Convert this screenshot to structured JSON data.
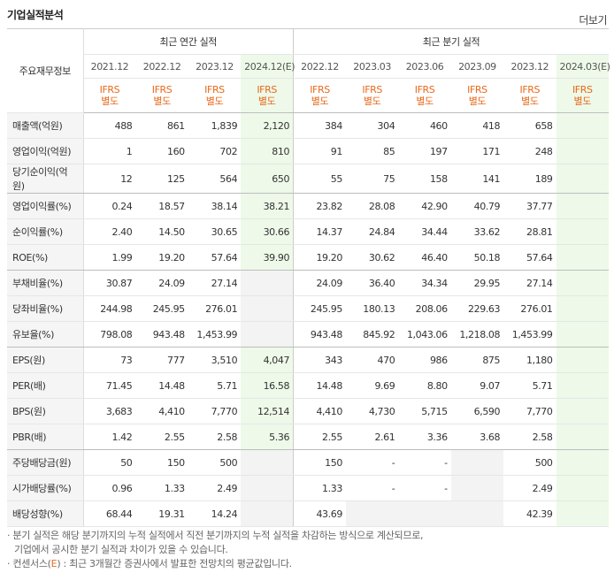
{
  "header": {
    "title": "기업실적분석",
    "more_label": "더보기"
  },
  "table": {
    "row_header_label": "주요재무정보",
    "group_annual": "최근 연간 실적",
    "group_quarter": "최근 분기 실적",
    "annual_periods": [
      "2021.12",
      "2022.12",
      "2023.12",
      "2024.12(E)"
    ],
    "quarter_periods": [
      "2022.12",
      "2023.03",
      "2023.06",
      "2023.09",
      "2023.12",
      "2024.03(E)"
    ],
    "standard_line1": "IFRS",
    "standard_line2": "별도",
    "rows": [
      {
        "label": "매출액(억원)",
        "annual": [
          "488",
          "861",
          "1,839",
          "2,120"
        ],
        "quarter": [
          "384",
          "304",
          "460",
          "418",
          "658",
          ""
        ]
      },
      {
        "label": "영업이익(억원)",
        "annual": [
          "1",
          "160",
          "702",
          "810"
        ],
        "quarter": [
          "91",
          "85",
          "197",
          "171",
          "248",
          ""
        ]
      },
      {
        "label": "당기순이익(억원)",
        "annual": [
          "12",
          "125",
          "564",
          "650"
        ],
        "quarter": [
          "55",
          "75",
          "158",
          "141",
          "189",
          ""
        ]
      },
      {
        "label": "영업이익률(%)",
        "annual": [
          "0.24",
          "18.57",
          "38.14",
          "38.21"
        ],
        "quarter": [
          "23.82",
          "28.08",
          "42.90",
          "40.79",
          "37.77",
          ""
        ]
      },
      {
        "label": "순이익률(%)",
        "annual": [
          "2.40",
          "14.50",
          "30.65",
          "30.66"
        ],
        "quarter": [
          "14.37",
          "24.84",
          "34.44",
          "33.62",
          "28.81",
          ""
        ]
      },
      {
        "label": "ROE(%)",
        "annual": [
          "1.99",
          "19.20",
          "57.64",
          "39.90"
        ],
        "quarter": [
          "19.20",
          "30.62",
          "46.40",
          "50.18",
          "57.64",
          ""
        ]
      },
      {
        "label": "부채비율(%)",
        "annual": [
          "30.87",
          "24.09",
          "27.14",
          ""
        ],
        "quarter": [
          "24.09",
          "36.40",
          "34.34",
          "29.95",
          "27.14",
          ""
        ]
      },
      {
        "label": "당좌비율(%)",
        "annual": [
          "244.98",
          "245.95",
          "276.01",
          ""
        ],
        "quarter": [
          "245.95",
          "180.13",
          "208.06",
          "229.63",
          "276.01",
          ""
        ]
      },
      {
        "label": "유보율(%)",
        "annual": [
          "798.08",
          "943.48",
          "1,453.99",
          ""
        ],
        "quarter": [
          "943.48",
          "845.92",
          "1,043.06",
          "1,218.08",
          "1,453.99",
          ""
        ]
      },
      {
        "label": "EPS(원)",
        "annual": [
          "73",
          "777",
          "3,510",
          "4,047"
        ],
        "quarter": [
          "343",
          "470",
          "986",
          "875",
          "1,180",
          ""
        ]
      },
      {
        "label": "PER(배)",
        "annual": [
          "71.45",
          "14.48",
          "5.71",
          "16.58"
        ],
        "quarter": [
          "14.48",
          "9.69",
          "8.80",
          "9.07",
          "5.71",
          ""
        ]
      },
      {
        "label": "BPS(원)",
        "annual": [
          "3,683",
          "4,410",
          "7,770",
          "12,514"
        ],
        "quarter": [
          "4,410",
          "4,730",
          "5,715",
          "6,590",
          "7,770",
          ""
        ]
      },
      {
        "label": "PBR(배)",
        "annual": [
          "1.42",
          "2.55",
          "2.58",
          "5.36"
        ],
        "quarter": [
          "2.55",
          "2.61",
          "3.36",
          "3.68",
          "2.58",
          ""
        ]
      },
      {
        "label": "주당배당금(원)",
        "annual": [
          "50",
          "150",
          "500",
          ""
        ],
        "quarter": [
          "150",
          "-",
          "-",
          "",
          "500",
          ""
        ]
      },
      {
        "label": "시가배당률(%)",
        "annual": [
          "0.96",
          "1.33",
          "2.49",
          ""
        ],
        "quarter": [
          "1.33",
          "-",
          "-",
          "",
          "2.49",
          ""
        ]
      },
      {
        "label": "배당성향(%)",
        "annual": [
          "68.44",
          "19.31",
          "14.24",
          ""
        ],
        "quarter": [
          "43.69",
          "",
          "",
          "",
          "42.39",
          ""
        ]
      }
    ]
  },
  "notes": {
    "line1": "· 분기 실적은 해당 분기까지의 누적 실적에서 직전 분기까지의 누적 실적을 차감하는 방식으로 계산되므로,",
    "line2": "  기업에서 공시한 분기 실적과 차이가 있을 수 있습니다.",
    "line3_prefix": "· 컨센서스(",
    "line3_e": "E",
    "line3_suffix": ") : 최근 3개월간 증권사에서 발표한 전망치의 평균값입니다."
  },
  "colors": {
    "accent": "#e8691a",
    "estimate_bg": "#eef9e9",
    "label_bg": "#f5f5f5"
  }
}
